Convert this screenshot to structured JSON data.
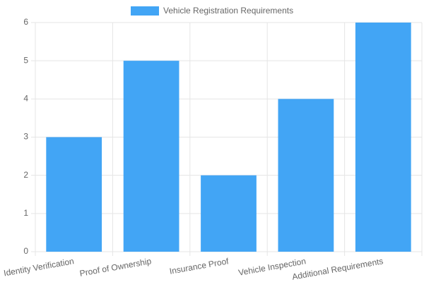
{
  "chart_data": {
    "type": "bar",
    "legend": "Vehicle Registration Requirements",
    "categories": [
      "Identity Verification",
      "Proof of Ownership",
      "Insurance Proof",
      "Vehicle Inspection",
      "Additional Requirements"
    ],
    "values": [
      3,
      5,
      2,
      4,
      6
    ],
    "color": "#42a5f5",
    "ylim": [
      0,
      6
    ],
    "yticks": [
      0,
      1,
      2,
      3,
      4,
      5,
      6
    ],
    "grid": true
  }
}
